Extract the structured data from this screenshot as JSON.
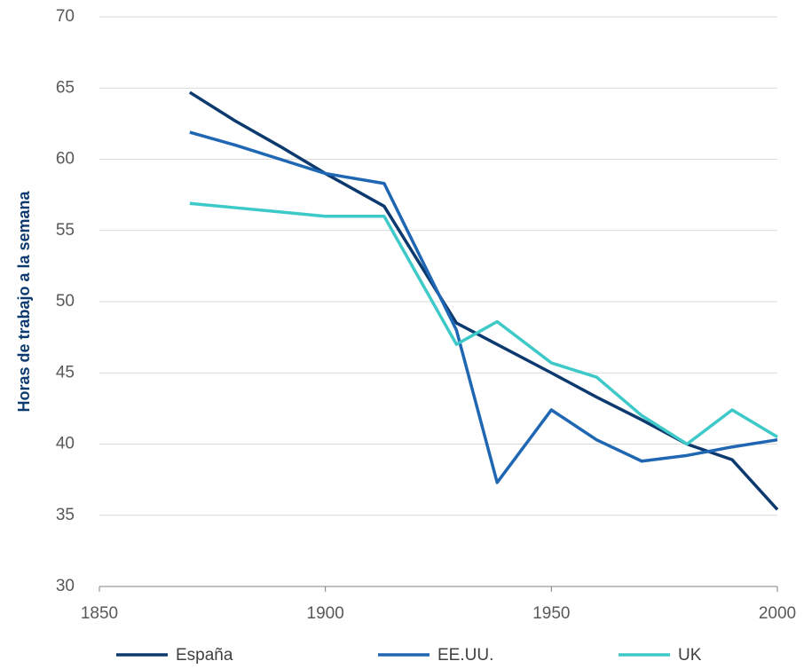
{
  "chart_data": {
    "type": "line",
    "ylabel": "Horas de trabajo a la semana",
    "x": [
      1870,
      1880,
      1890,
      1900,
      1913,
      1929,
      1938,
      1950,
      1960,
      1970,
      1980,
      1990,
      2000
    ],
    "series": [
      {
        "name": "España",
        "color": "#0d3a6e",
        "values": [
          64.7,
          62.7,
          60.9,
          59.0,
          56.7,
          48.5,
          47.0,
          45.0,
          43.3,
          41.7,
          40.0,
          38.9,
          35.4
        ]
      },
      {
        "name": "EE.UU.",
        "color": "#1f66b3",
        "values": [
          61.9,
          61.0,
          60.0,
          59.0,
          58.3,
          48.0,
          37.3,
          42.4,
          40.3,
          38.8,
          39.2,
          39.8,
          40.3
        ]
      },
      {
        "name": "UK",
        "color": "#3ec9c9",
        "values": [
          56.9,
          56.6,
          56.3,
          56.0,
          56.0,
          47.0,
          48.6,
          45.7,
          44.7,
          42.0,
          40.0,
          42.4,
          40.5
        ]
      }
    ],
    "xlim": [
      1850,
      2000
    ],
    "xticks": [
      1850,
      1900,
      1950,
      2000
    ],
    "ylim": [
      30,
      70
    ],
    "yticks": [
      30,
      35,
      40,
      45,
      50,
      55,
      60,
      65,
      70
    ],
    "grid": true,
    "legend": "bottom"
  }
}
